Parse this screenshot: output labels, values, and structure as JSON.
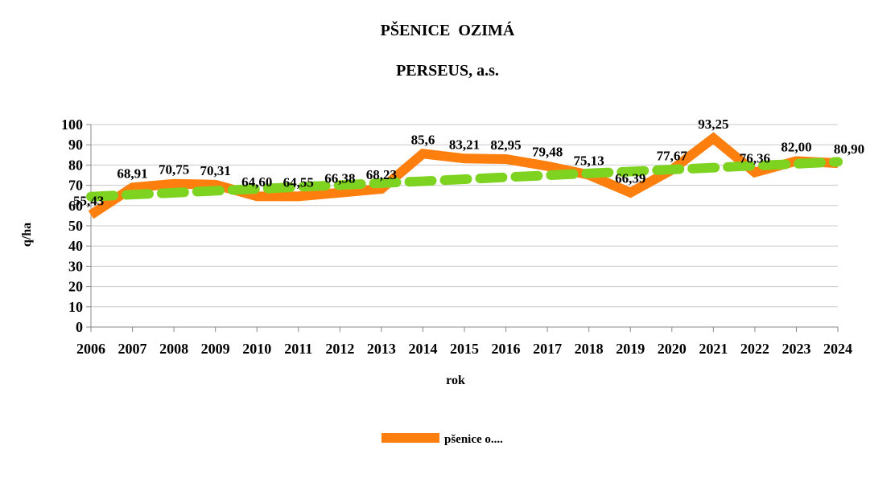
{
  "chart_data": {
    "type": "line",
    "title": "PŠENICE  OZIMÁ",
    "subtitle": "PERSEUS, a.s.",
    "xlabel": "rok",
    "ylabel": "q/ha",
    "ylim": [
      0,
      100
    ],
    "yticks": [
      "0",
      "10",
      "20",
      "30",
      "40",
      "50",
      "60",
      "70",
      "80",
      "90",
      "100"
    ],
    "categories": [
      "2006",
      "2007",
      "2008",
      "2009",
      "2010",
      "2011",
      "2012",
      "2013",
      "2014",
      "2015",
      "2016",
      "2017",
      "2018",
      "2019",
      "2020",
      "2021",
      "2022",
      "2023",
      "2024"
    ],
    "grid": true,
    "legend_position": "bottom",
    "series": [
      {
        "name": "pšenice o....",
        "color": "#ff7f0e",
        "style": "solid",
        "values": [
          55.43,
          68.91,
          70.75,
          70.31,
          64.6,
          64.55,
          66.38,
          68.23,
          85.6,
          83.21,
          82.95,
          79.48,
          75.13,
          66.39,
          77.67,
          93.25,
          76.36,
          82.0,
          80.9
        ],
        "labels": [
          "55,43",
          "68,91",
          "70,75",
          "70,31",
          "64,60",
          "64,55",
          "66,38",
          "68,23",
          "85,6",
          "83,21",
          "82,95",
          "79,48",
          "75,13",
          "66,39",
          "77,67",
          "93,25",
          "76,36",
          "82,00",
          "80,90"
        ]
      },
      {
        "color": "#7ed321",
        "style": "dashed",
        "trendline": true,
        "values": [
          64.4,
          65.4,
          66.3,
          67.3,
          68.2,
          69.2,
          70.1,
          71.1,
          72.0,
          73.0,
          74.0,
          74.9,
          75.9,
          76.8,
          77.8,
          78.7,
          79.7,
          80.6,
          81.6
        ]
      }
    ]
  }
}
